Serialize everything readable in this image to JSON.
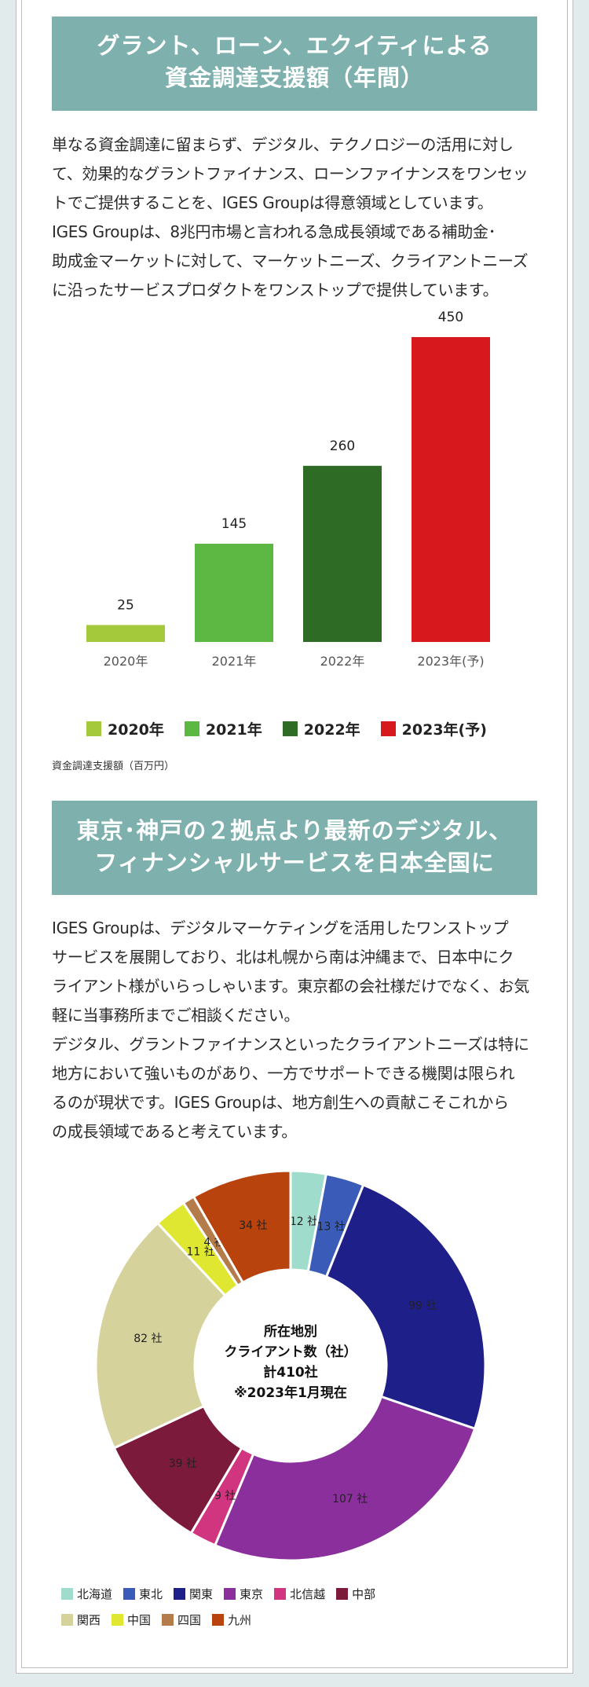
{
  "section1": {
    "title_line1": "グラント、ローン、エクイティによる",
    "title_line2": "資金調達支援額（年間）",
    "paragraph_lines": [
      "単なる資金調達に留まらず、デジタル、テクノロジーの活用に対し",
      "て、効果的なグラントファイナンス、ローンファイナンスをワンセッ",
      "トでご提供することを、IGES Groupは得意領域としています。",
      "IGES Groupは、8兆円市場と言われる急成長領域である補助金･",
      "助成金マーケットに対して、マーケットニーズ、クライアントニーズ",
      "に沿ったサービスプロダクトをワンストップで提供しています。"
    ],
    "unit_note": "資金調達支援額（百万円）"
  },
  "section2": {
    "title_line1": "東京･神戸の２拠点より最新のデジタル、",
    "title_line2": "フィナンシャルサービスを日本全国に",
    "paragraph_lines": [
      "IGES Groupは、デジタルマーケティングを活用したワンストップ",
      "サービスを展開しており、北は札幌から南は沖縄まで、日本中にク",
      "ライアント様がいらっしゃいます。東京都の会社様だけでなく、お気",
      "軽に当事務所までご相談ください。",
      "デジタル、グラントファイナンスといったクライアントニーズは特に",
      "地方において強いものがあり、一方でサポートできる機関は限られ",
      "るのが現状です。IGES Groupは、地方創生への貢献こそこれから",
      "の成長領域であると考えています。"
    ]
  },
  "chart_data": [
    {
      "type": "bar",
      "categories": [
        "2020年",
        "2021年",
        "2022年",
        "2023年(予)"
      ],
      "values": [
        25,
        145,
        260,
        450
      ],
      "colors": [
        "#a4c93a",
        "#5cb843",
        "#2e6b25",
        "#d7191e"
      ],
      "legend": [
        "2020年",
        "2021年",
        "2022年",
        "2023年(予)"
      ],
      "legend_position": "bottom",
      "ylabel": "資金調達支援額（百万円）",
      "ylim": [
        0,
        450
      ],
      "grid": false
    },
    {
      "type": "pie",
      "donut": true,
      "center_lines": [
        "所在地別",
        "クライアント数（社）",
        "計410社",
        "※2023年1月現在"
      ],
      "categories": [
        "北海道",
        "東北",
        "関東",
        "東京",
        "北信越",
        "中部",
        "関西",
        "中国",
        "四国",
        "九州"
      ],
      "values": [
        12,
        13,
        99,
        107,
        9,
        39,
        82,
        11,
        4,
        34
      ],
      "value_labels": [
        "12 社",
        "13 社",
        "99 社",
        "107 社",
        "9 社",
        "39 社",
        "82 社",
        "11 社",
        "4 社",
        "34 社"
      ],
      "colors": [
        "#9fdccb",
        "#3a5cb8",
        "#1f1f8a",
        "#8b2f9c",
        "#d2357f",
        "#7c1a3c",
        "#d5d39b",
        "#dfe731",
        "#b47c4a",
        "#b8430d"
      ],
      "legend_position": "bottom"
    }
  ]
}
